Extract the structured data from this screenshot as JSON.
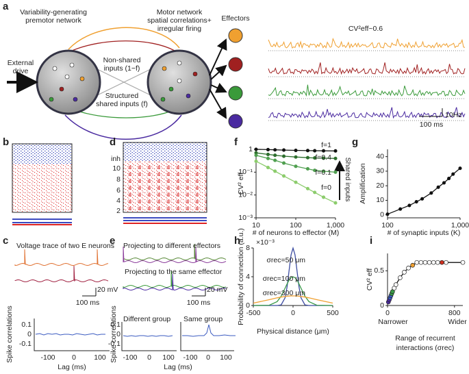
{
  "figure": {
    "panel_labels": [
      "a",
      "b",
      "c",
      "d",
      "e",
      "f",
      "g",
      "h",
      "i"
    ],
    "a": {
      "premotor": [
        "Variability-generating",
        "premotor network"
      ],
      "motor": [
        "Motor network",
        "spatial correlations+",
        "irregular firing"
      ],
      "drive": [
        "External",
        "drive"
      ],
      "nonshared": [
        "Non-shared",
        "inputs (1−f)"
      ],
      "shared": [
        "Structured",
        "shared inputs (f)"
      ],
      "effectors": "Effectors",
      "cv": "CV²eff~0.6",
      "rate_scale": "10Hz",
      "time_scale": "100 ms"
    },
    "c": {
      "title": "Voltage trace of two E neurons",
      "v_scale": "20 mV",
      "t_scale": "100 ms",
      "corr_ylabel": "Spike correlations",
      "corr_yticks": [
        "0.1",
        "0",
        "-0.1"
      ],
      "corr_xticks": [
        "-100",
        "0",
        "100"
      ],
      "corr_xlabel": "Lag (ms)"
    },
    "d": {
      "rows": [
        "inh",
        "10",
        "8",
        "6",
        "4",
        "2"
      ]
    },
    "e": {
      "different": "Projecting to different effectors",
      "same": "Projecting to the same effector",
      "v_scale": "20 mV",
      "t_scale": "100 ms",
      "group1": "Different group",
      "group2": "Same group",
      "corr_ylabel": "Spike correlations",
      "corr_yticks": [
        "0.1",
        "0",
        "-0.1"
      ],
      "corr_xticks": [
        "-100",
        "0",
        "100"
      ],
      "corr_xlabel": "Lag (ms)"
    }
  },
  "chart_data": [
    {
      "type": "line",
      "ylabel": "CV² eff",
      "xlabel": "# of neurons to effector (M)",
      "annotation": "Shared inputs",
      "xlog": true,
      "ylog": true,
      "markers": true,
      "x": [
        10,
        20,
        30,
        50,
        100,
        200,
        300,
        500,
        1000
      ],
      "series": [
        {
          "name": "f=1",
          "color": "#111111",
          "values": [
            1,
            0.97,
            0.95,
            0.93,
            0.9,
            0.88,
            0.87,
            0.86,
            0.85
          ]
        },
        {
          "name": "f=0.4",
          "color": "#2e6e2e",
          "values": [
            0.7,
            0.6,
            0.55,
            0.5,
            0.46,
            0.43,
            0.42,
            0.41,
            0.4
          ]
        },
        {
          "name": "f=0.1",
          "color": "#4f9f4f",
          "values": [
            0.55,
            0.4,
            0.33,
            0.25,
            0.18,
            0.14,
            0.12,
            0.11,
            0.1
          ]
        },
        {
          "name": "f=0",
          "color": "#8ccc6c",
          "values": [
            0.3,
            0.16,
            0.11,
            0.068,
            0.036,
            0.019,
            0.013,
            0.008,
            0.0045
          ]
        }
      ],
      "xlim": [
        10,
        1000
      ],
      "ylim": [
        0.001,
        1
      ],
      "xticks": [
        10,
        100,
        {
          "value": 1000,
          "label": "1,000"
        }
      ],
      "yticks": [
        {
          "value": 0.001,
          "label": "10⁻³"
        },
        {
          "value": 0.01,
          "label": "10⁻²"
        },
        {
          "value": 0.1,
          "label": "10⁻¹"
        },
        1
      ]
    },
    {
      "type": "line",
      "ylabel": "Amplification",
      "xlabel": "# of synaptic inputs (K)",
      "xlog": true,
      "ylog": false,
      "markers": true,
      "x": [
        100,
        150,
        200,
        250,
        300,
        400,
        500,
        600,
        700,
        800,
        1000
      ],
      "series": [
        {
          "name": null,
          "color": "#111111",
          "values": [
            0.5,
            4,
            6.5,
            9,
            11,
            15,
            19,
            22,
            25,
            28,
            32
          ]
        }
      ],
      "xlim": [
        100,
        1000
      ],
      "ylim": [
        -2,
        45
      ],
      "xticks": [
        100,
        {
          "value": 1000,
          "label": "1,000"
        }
      ],
      "yticks": [
        0,
        10,
        20,
        30,
        40
      ]
    },
    {
      "type": "line",
      "ylabel": "Probability of connection (a.u.)",
      "xlabel": "Physical distance (μm)",
      "annotation": "×10⁻³",
      "xlog": false,
      "ylog": false,
      "markers": false,
      "x": [
        -500,
        -300,
        -200,
        -150,
        -100,
        -75,
        -50,
        -25,
        0,
        25,
        50,
        75,
        100,
        150,
        200,
        300,
        500
      ],
      "series": [
        {
          "name": "σrec=50 μm",
          "color": "#3a4aa0",
          "values": [
            0,
            0,
            0,
            0.09,
            1.08,
            2.59,
            4.84,
            7.04,
            7.98,
            7.04,
            4.84,
            2.59,
            1.08,
            0.09,
            0,
            0,
            0
          ]
        },
        {
          "name": "σrec=100 μm",
          "color": "#3a9a4a",
          "values": [
            0,
            0.04,
            0.54,
            1.3,
            2.42,
            3.01,
            3.52,
            3.87,
            3.99,
            3.87,
            3.52,
            3.01,
            2.42,
            1.3,
            0.54,
            0.04,
            0
          ]
        },
        {
          "name": "σrec=300 μm",
          "color": "#f0a030",
          "values": [
            0.33,
            0.81,
            1.07,
            1.17,
            1.26,
            1.29,
            1.31,
            1.33,
            1.33,
            1.33,
            1.31,
            1.29,
            1.26,
            1.17,
            1.07,
            0.81,
            0.33
          ]
        }
      ],
      "xlim": [
        -500,
        500
      ],
      "ylim": [
        0,
        8
      ],
      "xticks": [
        -500,
        0,
        500
      ],
      "yticks": [
        0,
        4,
        8
      ]
    },
    {
      "type": "line",
      "ylabel": "CV² eff",
      "xlabel": [
        "Range of recurrent",
        "interactions (σrec)"
      ],
      "x_end_labels": [
        "Narrower",
        "Wider"
      ],
      "xlog": false,
      "ylog": false,
      "markers": true,
      "x": [
        10,
        20,
        30,
        40,
        50,
        60,
        80,
        100,
        150,
        200,
        250,
        300,
        350,
        400,
        450,
        500,
        550,
        600,
        650,
        700,
        900
      ],
      "series": [
        {
          "name": null,
          "color": "#111111",
          "values": [
            0.05,
            0.08,
            0.11,
            0.14,
            0.17,
            0.2,
            0.25,
            0.3,
            0.4,
            0.48,
            0.54,
            0.58,
            0.62,
            0.62,
            0.62,
            0.62,
            0.62,
            0.62,
            0.62,
            0.62,
            0.62
          ],
          "point_colors": [
            "#4a2aa0",
            "#4a2aa0",
            "#3a5ac0",
            "#3a5ac0",
            "#3a9a4a",
            "#3a9a4a",
            "#ffffff",
            "#ffffff",
            "#ffffff",
            "#ffffff",
            "#ffffff",
            "#f0a030",
            "#ffffff",
            "#ffffff",
            "#ffffff",
            "#ffffff",
            "#ffffff",
            "#ffffff",
            "#d03020",
            "#ffffff",
            "#ffffff"
          ]
        }
      ],
      "xlim": [
        0,
        900
      ],
      "ylim": [
        0,
        0.75
      ],
      "xticks": [
        0,
        800
      ],
      "yticks": [
        0,
        0.5
      ]
    }
  ]
}
